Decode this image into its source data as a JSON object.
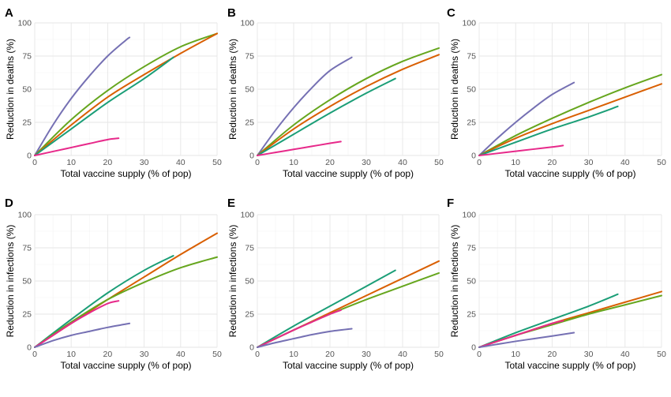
{
  "colors": {
    "orange": "#D95F02",
    "green": "#66A61E",
    "teal": "#1B9E77",
    "purple": "#7570B3",
    "magenta": "#E7298A"
  },
  "chart_data": [
    {
      "panel": "A",
      "type": "line",
      "xlabel": "Total vaccine supply (% of pop)",
      "ylabel": "Reduction in deaths (%)",
      "xlim": [
        0,
        50
      ],
      "ylim": [
        0,
        100
      ],
      "xticks": [
        0,
        10,
        20,
        30,
        40,
        50
      ],
      "yticks": [
        0,
        25,
        50,
        75,
        100
      ],
      "grid": true,
      "series": [
        {
          "color": "#7570B3",
          "x": [
            0,
            5,
            10,
            15,
            20,
            25,
            26
          ],
          "y": [
            0,
            23,
            43,
            60,
            75,
            87,
            89
          ]
        },
        {
          "color": "#66A61E",
          "x": [
            0,
            10,
            20,
            30,
            40,
            50
          ],
          "y": [
            0,
            27,
            49,
            67,
            82,
            92
          ]
        },
        {
          "color": "#D95F02",
          "x": [
            0,
            10,
            20,
            30,
            40,
            50
          ],
          "y": [
            0,
            23,
            44,
            61,
            77,
            92
          ]
        },
        {
          "color": "#1B9E77",
          "x": [
            0,
            10,
            20,
            30,
            38
          ],
          "y": [
            0,
            20,
            40,
            58,
            74
          ]
        },
        {
          "color": "#E7298A",
          "x": [
            0,
            5,
            10,
            15,
            20,
            23
          ],
          "y": [
            0,
            3,
            6,
            9,
            12,
            13
          ]
        }
      ]
    },
    {
      "panel": "B",
      "type": "line",
      "xlabel": "Total vaccine supply (% of pop)",
      "ylabel": "Reduction in deaths (%)",
      "xlim": [
        0,
        50
      ],
      "ylim": [
        0,
        100
      ],
      "xticks": [
        0,
        10,
        20,
        30,
        40,
        50
      ],
      "yticks": [
        0,
        25,
        50,
        75,
        100
      ],
      "grid": true,
      "series": [
        {
          "color": "#7570B3",
          "x": [
            0,
            5,
            10,
            15,
            20,
            26
          ],
          "y": [
            0,
            19,
            36,
            51,
            64,
            74
          ]
        },
        {
          "color": "#66A61E",
          "x": [
            0,
            10,
            20,
            30,
            40,
            50
          ],
          "y": [
            0,
            23,
            42,
            58,
            71,
            81
          ]
        },
        {
          "color": "#D95F02",
          "x": [
            0,
            10,
            20,
            30,
            40,
            50
          ],
          "y": [
            0,
            20,
            37,
            52,
            65,
            76
          ]
        },
        {
          "color": "#1B9E77",
          "x": [
            0,
            10,
            20,
            30,
            38
          ],
          "y": [
            0,
            16,
            32,
            47,
            58
          ]
        },
        {
          "color": "#E7298A",
          "x": [
            0,
            5,
            10,
            15,
            20,
            23
          ],
          "y": [
            0,
            2.3,
            4.6,
            6.9,
            9.2,
            10.5
          ]
        }
      ]
    },
    {
      "panel": "C",
      "type": "line",
      "xlabel": "Total vaccine supply (% of pop)",
      "ylabel": "Reduction in deaths (%)",
      "xlim": [
        0,
        50
      ],
      "ylim": [
        0,
        100
      ],
      "xticks": [
        0,
        10,
        20,
        30,
        40,
        50
      ],
      "yticks": [
        0,
        25,
        50,
        75,
        100
      ],
      "grid": true,
      "series": [
        {
          "color": "#7570B3",
          "x": [
            0,
            5,
            10,
            15,
            20,
            26
          ],
          "y": [
            0,
            13,
            25,
            36,
            46,
            55
          ]
        },
        {
          "color": "#66A61E",
          "x": [
            0,
            10,
            20,
            30,
            40,
            50
          ],
          "y": [
            0,
            15,
            28,
            40,
            51,
            61
          ]
        },
        {
          "color": "#D95F02",
          "x": [
            0,
            10,
            20,
            30,
            40,
            50
          ],
          "y": [
            0,
            13,
            24,
            34,
            44,
            54
          ]
        },
        {
          "color": "#1B9E77",
          "x": [
            0,
            10,
            20,
            30,
            38
          ],
          "y": [
            0,
            10,
            20,
            29,
            37
          ]
        },
        {
          "color": "#E7298A",
          "x": [
            0,
            5,
            10,
            15,
            20,
            23
          ],
          "y": [
            0,
            1.6,
            3.2,
            4.8,
            6.4,
            7.5
          ]
        }
      ]
    },
    {
      "panel": "D",
      "type": "line",
      "xlabel": "Total vaccine supply (% of pop)",
      "ylabel": "Reduction in infections (%)",
      "xlim": [
        0,
        50
      ],
      "ylim": [
        0,
        100
      ],
      "xticks": [
        0,
        10,
        20,
        30,
        40,
        50
      ],
      "yticks": [
        0,
        25,
        50,
        75,
        100
      ],
      "grid": true,
      "series": [
        {
          "color": "#1B9E77",
          "x": [
            0,
            10,
            20,
            30,
            38
          ],
          "y": [
            0,
            21,
            41,
            58,
            69
          ]
        },
        {
          "color": "#D95F02",
          "x": [
            0,
            10,
            20,
            30,
            40,
            50
          ],
          "y": [
            0,
            18,
            36,
            53,
            70,
            86
          ]
        },
        {
          "color": "#66A61E",
          "x": [
            0,
            10,
            20,
            30,
            40,
            50
          ],
          "y": [
            0,
            19,
            36,
            49,
            60,
            68
          ]
        },
        {
          "color": "#E7298A",
          "x": [
            0,
            5,
            10,
            15,
            20,
            23
          ],
          "y": [
            0,
            9,
            18,
            26,
            33,
            35
          ]
        },
        {
          "color": "#7570B3",
          "x": [
            0,
            5,
            10,
            15,
            20,
            26
          ],
          "y": [
            0,
            5,
            9,
            12,
            15,
            18
          ]
        }
      ]
    },
    {
      "panel": "E",
      "type": "line",
      "xlabel": "Total vaccine supply (% of pop)",
      "ylabel": "Reduction in infections (%)",
      "xlim": [
        0,
        50
      ],
      "ylim": [
        0,
        100
      ],
      "xticks": [
        0,
        10,
        20,
        30,
        40,
        50
      ],
      "yticks": [
        0,
        25,
        50,
        75,
        100
      ],
      "grid": true,
      "series": [
        {
          "color": "#1B9E77",
          "x": [
            0,
            10,
            20,
            30,
            38
          ],
          "y": [
            0,
            16,
            31,
            46,
            58
          ]
        },
        {
          "color": "#D95F02",
          "x": [
            0,
            10,
            20,
            30,
            40,
            50
          ],
          "y": [
            0,
            13,
            26,
            39,
            52,
            65
          ]
        },
        {
          "color": "#66A61E",
          "x": [
            0,
            10,
            20,
            30,
            40,
            50
          ],
          "y": [
            0,
            13,
            25,
            36,
            46,
            56
          ]
        },
        {
          "color": "#E7298A",
          "x": [
            0,
            5,
            10,
            15,
            20,
            23
          ],
          "y": [
            0,
            6.5,
            13,
            19,
            25,
            28
          ]
        },
        {
          "color": "#7570B3",
          "x": [
            0,
            5,
            10,
            15,
            20,
            26
          ],
          "y": [
            0,
            3.5,
            6.5,
            9.5,
            12,
            14
          ]
        }
      ]
    },
    {
      "panel": "F",
      "type": "line",
      "xlabel": "Total vaccine supply (% of pop)",
      "ylabel": "Reduction in infections (%)",
      "xlim": [
        0,
        50
      ],
      "ylim": [
        0,
        100
      ],
      "xticks": [
        0,
        10,
        20,
        30,
        40,
        50
      ],
      "yticks": [
        0,
        25,
        50,
        75,
        100
      ],
      "grid": true,
      "series": [
        {
          "color": "#1B9E77",
          "x": [
            0,
            10,
            20,
            30,
            38
          ],
          "y": [
            0,
            11,
            21,
            31,
            40
          ]
        },
        {
          "color": "#D95F02",
          "x": [
            0,
            10,
            20,
            30,
            40,
            50
          ],
          "y": [
            0,
            9,
            18,
            26,
            34,
            42
          ]
        },
        {
          "color": "#66A61E",
          "x": [
            0,
            10,
            20,
            30,
            40,
            50
          ],
          "y": [
            0,
            9,
            17,
            25,
            32,
            39
          ]
        },
        {
          "color": "#E7298A",
          "x": [
            0,
            5,
            10,
            15,
            20,
            23
          ],
          "y": [
            0,
            4.5,
            9,
            13.5,
            18,
            20
          ]
        },
        {
          "color": "#7570B3",
          "x": [
            0,
            5,
            10,
            15,
            20,
            26
          ],
          "y": [
            0,
            2.3,
            4.5,
            6.5,
            8.5,
            11
          ]
        }
      ]
    }
  ]
}
